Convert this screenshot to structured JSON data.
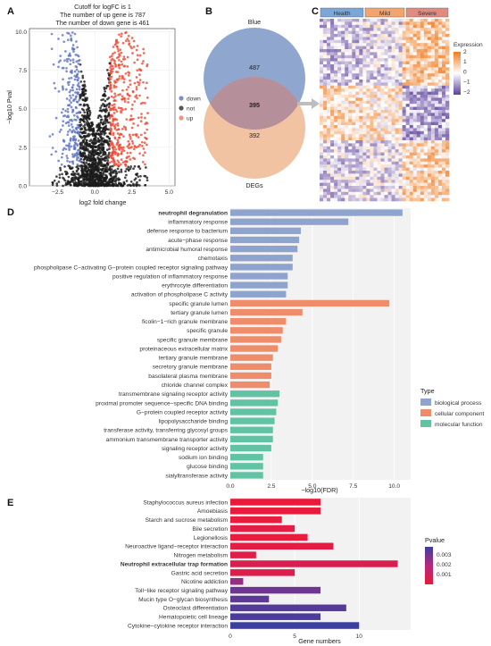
{
  "volcano": {
    "panel": "A",
    "title_lines": [
      "Cutoff for logFC is 1",
      "The number of up gene is 787",
      "The number of down gene is 461"
    ],
    "xlabel": "log2 fold change",
    "ylabel": "−log10 Pval",
    "xticks": [
      "−2.5",
      "0.0",
      "2.5",
      "5.0"
    ],
    "yticks": [
      "0.0",
      "2.5",
      "5.0",
      "7.5",
      "10.0"
    ],
    "legend": [
      {
        "label": "down",
        "color": "#7b8fc9"
      },
      {
        "label": "not",
        "color": "#555555"
      },
      {
        "label": "up",
        "color": "#f0927d"
      }
    ]
  },
  "venn": {
    "panel": "B",
    "top_label": "Blue",
    "bottom_label": "DEGs",
    "only_top": "487",
    "overlap": "395",
    "only_bottom": "392",
    "top_color": "#8fa6cf",
    "bottom_color": "#efb893"
  },
  "heatmap": {
    "panel": "C",
    "groups": [
      {
        "label": "Health",
        "color": "#7aa6d8"
      },
      {
        "label": "Mild",
        "color": "#f2a36e"
      },
      {
        "label": "Severe",
        "color": "#e08a82"
      }
    ],
    "legend_title": "Expression",
    "legend_ticks": [
      "2",
      "1",
      "0",
      "−1",
      "−2"
    ]
  },
  "go": {
    "panel": "D",
    "xlabel": "−log10(FDR)",
    "xticks": [
      "0.0",
      "2.5",
      "5.0",
      "7.5",
      "10.0"
    ],
    "legend_title": "Type",
    "legend": [
      {
        "label": "biological process",
        "color": "#8fa3cf"
      },
      {
        "label": "cellular component",
        "color": "#ef8c6a"
      },
      {
        "label": "molecular function",
        "color": "#62c2a4"
      }
    ]
  },
  "kegg": {
    "panel": "E",
    "xlabel": "Gene numbers",
    "xticks": [
      "0",
      "5",
      "10"
    ],
    "legend_title": "Pvalue",
    "legend_ticks": [
      "0.003",
      "0.002",
      "0.001"
    ]
  },
  "chart_data": [
    {
      "type": "scatter",
      "id": "volcano",
      "xlim": [
        -4.4,
        5.4
      ],
      "ylim": [
        0,
        10.2
      ],
      "logfc_cutoff": 1,
      "up_count": 787,
      "down_count": 461
    },
    {
      "type": "bar",
      "id": "go",
      "orientation": "horizontal",
      "xlim": [
        0,
        11
      ],
      "categories": [
        "neutrophil degranulation",
        "inflammatory response",
        "defense response to bacterium",
        "acute−phase response",
        "antimicrobial humoral response",
        "chemotaxis",
        "phospholipase C−activating G−protein coupled receptor signaling pathway",
        "positive regulation of inflammatory response",
        "erythrocyte differentiation",
        "activation of phospholipase C activity",
        "specific granule lumen",
        "tertiary granule lumen",
        "ficolin−1−rich granule membrane",
        "specific granule",
        "specific granule membrane",
        "proteinaceous extracellular matrix",
        "tertiary granule membrane",
        "secretory granule membrane",
        "basolateral plasma membrane",
        "chloride channel complex",
        "transmembrane signaling receptor activity",
        "proximal promoter sequence−specific DNA binding",
        "G−protein coupled receptor activity",
        "lipopolysaccharide binding",
        "transferase activity, transferring glycosyl groups",
        "ammonium transmembrane transporter activity",
        "signaling receptor activity",
        "sodium ion binding",
        "glucose binding",
        "sialyltransferase activity"
      ],
      "values": [
        10.5,
        7.2,
        4.3,
        4.2,
        4.1,
        3.8,
        3.8,
        3.5,
        3.5,
        3.4,
        9.7,
        4.4,
        3.4,
        3.2,
        3.1,
        2.9,
        2.6,
        2.5,
        2.5,
        2.4,
        3.0,
        2.9,
        2.8,
        2.7,
        2.6,
        2.6,
        2.5,
        2.0,
        2.0,
        2.0
      ],
      "types": [
        "biological process",
        "biological process",
        "biological process",
        "biological process",
        "biological process",
        "biological process",
        "biological process",
        "biological process",
        "biological process",
        "biological process",
        "cellular component",
        "cellular component",
        "cellular component",
        "cellular component",
        "cellular component",
        "cellular component",
        "cellular component",
        "cellular component",
        "cellular component",
        "cellular component",
        "molecular function",
        "molecular function",
        "molecular function",
        "molecular function",
        "molecular function",
        "molecular function",
        "molecular function",
        "molecular function",
        "molecular function",
        "molecular function"
      ],
      "bold": [
        "neutrophil degranulation"
      ]
    },
    {
      "type": "bar",
      "id": "kegg",
      "orientation": "horizontal",
      "xlim": [
        0,
        14
      ],
      "categories": [
        "Staphylococcus aureus infection",
        "Amoebiasis",
        "Starch and sucrose metabolism",
        "Bile secretion",
        "Legionellosis",
        "Neuroactive ligand−receptor interaction",
        "Nitrogen metabolism",
        "Neutrophil extracellular trap formation",
        "Gastric acid secretion",
        "Nicotine addiction",
        "Toll−like receptor signaling pathway",
        "Mucin type O−glycan biosynthesis",
        "Osteoclast differentiation",
        "Hematopoietic cell lineage",
        "Cytokine−cytokine receptor interaction"
      ],
      "values": [
        7,
        7,
        4,
        5,
        6,
        8,
        2,
        13,
        5,
        1,
        7,
        3,
        9,
        7,
        10
      ],
      "pvalues": [
        0.0006,
        0.0006,
        0.0007,
        0.0008,
        0.0007,
        0.0008,
        0.0009,
        0.0011,
        0.001,
        0.0025,
        0.003,
        0.0032,
        0.0033,
        0.0034,
        0.0036
      ],
      "bold": [
        "Neutrophil extracellular trap formation"
      ]
    }
  ]
}
